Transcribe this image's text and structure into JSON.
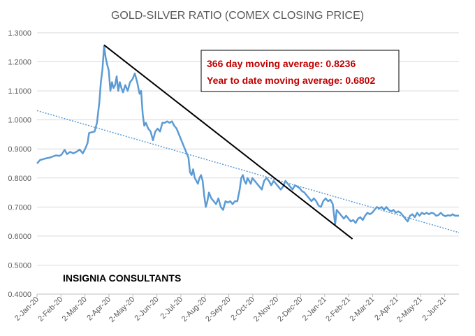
{
  "chart_data": {
    "type": "line",
    "title": "GOLD-SILVER RATIO (COMEX CLOSING PRICE)",
    "xlabel": "",
    "ylabel": "",
    "ylim": [
      0.4,
      1.3
    ],
    "yticks": [
      "0.4000",
      "0.5000",
      "0.6000",
      "0.7000",
      "0.8000",
      "0.9000",
      "1.0000",
      "1.1000",
      "1.2000",
      "1.3000"
    ],
    "xticks": [
      "2-Jan-20",
      "2-Feb-20",
      "2-Mar-20",
      "2-Apr-20",
      "2-May-20",
      "2-Jun-20",
      "2-Jul-20",
      "2-Aug-20",
      "2-Sep-20",
      "2-Oct-20",
      "2-Nov-20",
      "2-Dec-20",
      "2-Jan-21",
      "2-Feb-21",
      "2-Mar-21",
      "2-Apr-21",
      "2-May-21",
      "2-Jun-21"
    ],
    "x_range_days": [
      0,
      535
    ],
    "grid": true,
    "series": [
      {
        "name": "Gold-Silver Ratio",
        "color": "#5b9bd5",
        "points": [
          [
            0,
            0.85
          ],
          [
            4,
            0.862
          ],
          [
            8,
            0.865
          ],
          [
            12,
            0.868
          ],
          [
            16,
            0.87
          ],
          [
            20,
            0.874
          ],
          [
            24,
            0.878
          ],
          [
            28,
            0.876
          ],
          [
            31,
            0.88
          ],
          [
            35,
            0.897
          ],
          [
            38,
            0.882
          ],
          [
            42,
            0.89
          ],
          [
            46,
            0.885
          ],
          [
            50,
            0.89
          ],
          [
            54,
            0.898
          ],
          [
            58,
            0.885
          ],
          [
            61,
            0.9
          ],
          [
            64,
            0.92
          ],
          [
            66,
            0.955
          ],
          [
            70,
            0.958
          ],
          [
            73,
            0.96
          ],
          [
            76,
            0.99
          ],
          [
            79,
            1.06
          ],
          [
            81,
            1.13
          ],
          [
            83,
            1.175
          ],
          [
            85,
            1.255
          ],
          [
            87,
            1.215
          ],
          [
            89,
            1.19
          ],
          [
            91,
            1.17
          ],
          [
            93,
            1.1
          ],
          [
            95,
            1.13
          ],
          [
            97,
            1.11
          ],
          [
            99,
            1.12
          ],
          [
            101,
            1.15
          ],
          [
            103,
            1.1
          ],
          [
            105,
            1.13
          ],
          [
            107,
            1.11
          ],
          [
            109,
            1.095
          ],
          [
            112,
            1.12
          ],
          [
            115,
            1.1
          ],
          [
            118,
            1.13
          ],
          [
            121,
            1.14
          ],
          [
            124,
            1.16
          ],
          [
            127,
            1.13
          ],
          [
            130,
            1.09
          ],
          [
            132,
            1.1
          ],
          [
            134,
            1.02
          ],
          [
            136,
            0.98
          ],
          [
            138,
            0.99
          ],
          [
            141,
            0.97
          ],
          [
            144,
            0.96
          ],
          [
            147,
            0.93
          ],
          [
            150,
            0.96
          ],
          [
            153,
            0.97
          ],
          [
            156,
            0.96
          ],
          [
            159,
            0.99
          ],
          [
            162,
            0.99
          ],
          [
            165,
            0.995
          ],
          [
            168,
            0.99
          ],
          [
            171,
            0.995
          ],
          [
            174,
            0.98
          ],
          [
            177,
            0.97
          ],
          [
            180,
            0.95
          ],
          [
            183,
            0.93
          ],
          [
            186,
            0.91
          ],
          [
            189,
            0.89
          ],
          [
            192,
            0.87
          ],
          [
            194,
            0.82
          ],
          [
            196,
            0.81
          ],
          [
            198,
            0.83
          ],
          [
            200,
            0.8
          ],
          [
            202,
            0.79
          ],
          [
            204,
            0.78
          ],
          [
            206,
            0.8
          ],
          [
            208,
            0.81
          ],
          [
            210,
            0.79
          ],
          [
            212,
            0.74
          ],
          [
            214,
            0.7
          ],
          [
            216,
            0.72
          ],
          [
            218,
            0.75
          ],
          [
            221,
            0.73
          ],
          [
            224,
            0.72
          ],
          [
            227,
            0.71
          ],
          [
            230,
            0.73
          ],
          [
            233,
            0.7
          ],
          [
            236,
            0.69
          ],
          [
            239,
            0.72
          ],
          [
            242,
            0.715
          ],
          [
            245,
            0.72
          ],
          [
            248,
            0.71
          ],
          [
            251,
            0.72
          ],
          [
            254,
            0.72
          ],
          [
            257,
            0.76
          ],
          [
            259,
            0.8
          ],
          [
            261,
            0.81
          ],
          [
            263,
            0.79
          ],
          [
            265,
            0.78
          ],
          [
            267,
            0.8
          ],
          [
            269,
            0.79
          ],
          [
            271,
            0.78
          ],
          [
            273,
            0.8
          ],
          [
            276,
            0.79
          ],
          [
            279,
            0.78
          ],
          [
            282,
            0.77
          ],
          [
            285,
            0.76
          ],
          [
            288,
            0.79
          ],
          [
            291,
            0.8
          ],
          [
            294,
            0.79
          ],
          [
            297,
            0.775
          ],
          [
            300,
            0.79
          ],
          [
            303,
            0.78
          ],
          [
            306,
            0.77
          ],
          [
            309,
            0.76
          ],
          [
            312,
            0.77
          ],
          [
            315,
            0.79
          ],
          [
            318,
            0.78
          ],
          [
            321,
            0.77
          ],
          [
            324,
            0.76
          ],
          [
            327,
            0.775
          ],
          [
            330,
            0.77
          ],
          [
            333,
            0.765
          ],
          [
            336,
            0.755
          ],
          [
            339,
            0.75
          ],
          [
            342,
            0.74
          ],
          [
            345,
            0.73
          ],
          [
            348,
            0.72
          ],
          [
            351,
            0.73
          ],
          [
            354,
            0.72
          ],
          [
            357,
            0.705
          ],
          [
            360,
            0.7
          ],
          [
            363,
            0.72
          ],
          [
            366,
            0.73
          ],
          [
            369,
            0.72
          ],
          [
            372,
            0.725
          ],
          [
            375,
            0.71
          ],
          [
            378,
            0.64
          ],
          [
            380,
            0.69
          ],
          [
            383,
            0.68
          ],
          [
            386,
            0.67
          ],
          [
            389,
            0.66
          ],
          [
            392,
            0.67
          ],
          [
            395,
            0.66
          ],
          [
            398,
            0.65
          ],
          [
            401,
            0.655
          ],
          [
            404,
            0.645
          ],
          [
            407,
            0.66
          ],
          [
            410,
            0.665
          ],
          [
            413,
            0.655
          ],
          [
            416,
            0.67
          ],
          [
            419,
            0.68
          ],
          [
            422,
            0.675
          ],
          [
            425,
            0.68
          ],
          [
            428,
            0.69
          ],
          [
            431,
            0.7
          ],
          [
            434,
            0.695
          ],
          [
            437,
            0.7
          ],
          [
            440,
            0.69
          ],
          [
            443,
            0.7
          ],
          [
            446,
            0.69
          ],
          [
            449,
            0.685
          ],
          [
            452,
            0.69
          ],
          [
            455,
            0.68
          ],
          [
            458,
            0.685
          ],
          [
            461,
            0.68
          ],
          [
            464,
            0.67
          ],
          [
            467,
            0.66
          ],
          [
            470,
            0.65
          ],
          [
            473,
            0.67
          ],
          [
            476,
            0.675
          ],
          [
            479,
            0.665
          ],
          [
            482,
            0.68
          ],
          [
            485,
            0.67
          ],
          [
            488,
            0.68
          ],
          [
            491,
            0.675
          ],
          [
            494,
            0.68
          ],
          [
            497,
            0.675
          ],
          [
            500,
            0.68
          ],
          [
            503,
            0.678
          ],
          [
            506,
            0.67
          ],
          [
            509,
            0.672
          ],
          [
            512,
            0.68
          ],
          [
            515,
            0.672
          ],
          [
            518,
            0.668
          ],
          [
            521,
            0.672
          ],
          [
            524,
            0.67
          ],
          [
            527,
            0.675
          ],
          [
            530,
            0.67
          ],
          [
            535,
            0.67
          ]
        ]
      }
    ],
    "trendline": {
      "name": "Linear trend",
      "style": "dotted",
      "color": "#5b9bd5",
      "start": [
        0,
        1.032
      ],
      "end": [
        535,
        0.612
      ]
    },
    "annotation_line": {
      "color": "#000000",
      "start": [
        85,
        1.258
      ],
      "end": [
        400,
        0.59
      ]
    },
    "annotations": {
      "moving_avg_366": "366 day moving average: 0.8236",
      "ytd_moving_avg": "Year to date moving average: 0.6802",
      "brand": "INSIGNIA CONSULTANTS"
    }
  }
}
